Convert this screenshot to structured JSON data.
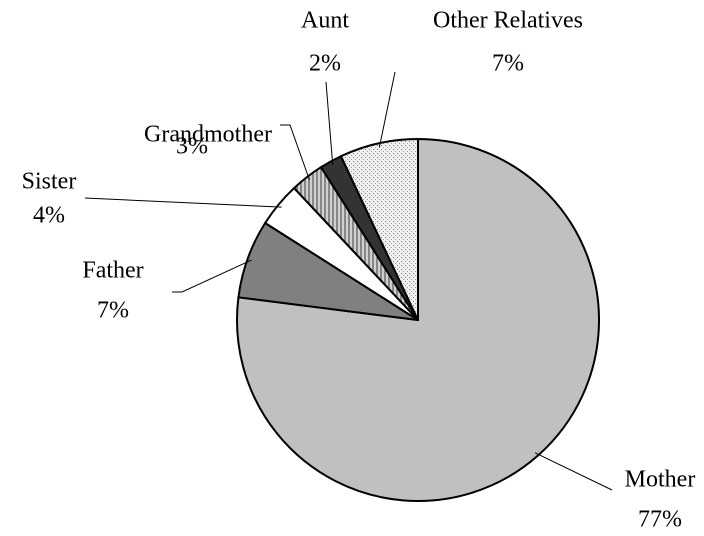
{
  "chart_data": {
    "type": "pie",
    "categories": [
      "Mother",
      "Father",
      "Sister",
      "Grandmother",
      "Aunt",
      "Other Relatives"
    ],
    "values": [
      77,
      7,
      4,
      3,
      2,
      7
    ],
    "value_labels": [
      "77%",
      "7%",
      "4%",
      "3%",
      "2%",
      "7%"
    ],
    "colors": [
      "#c0c0c0",
      "#808080",
      "#ffffff",
      "#a8a8a8",
      "#333333",
      "#e4e4e4"
    ],
    "start_angle": "top",
    "direction": "clockwise"
  }
}
